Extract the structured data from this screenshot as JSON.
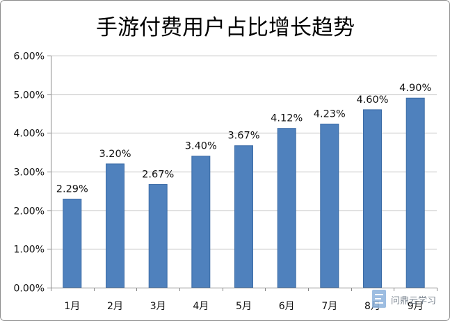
{
  "chart_data": {
    "type": "bar",
    "title": "手游付费用户占比增长趋势",
    "categories": [
      "1月",
      "2月",
      "3月",
      "4月",
      "5月",
      "6月",
      "7月",
      "8月",
      "9月"
    ],
    "values": [
      2.29,
      3.2,
      2.67,
      3.4,
      3.67,
      4.12,
      4.23,
      4.6,
      4.9
    ],
    "data_labels": [
      "2.29%",
      "3.20%",
      "2.67%",
      "3.40%",
      "3.67%",
      "4.12%",
      "4.23%",
      "4.60%",
      "4.90%"
    ],
    "ylim": [
      0,
      6
    ],
    "ytick_values": [
      0,
      1,
      2,
      3,
      4,
      5,
      6
    ],
    "ytick_labels": [
      "0.00%",
      "1.00%",
      "2.00%",
      "3.00%",
      "4.00%",
      "5.00%",
      "6.00%"
    ],
    "grid": true,
    "bar_color": "#4F81BD"
  },
  "watermark": {
    "text": "问鼎云学习",
    "icon": "document-logo-icon"
  }
}
